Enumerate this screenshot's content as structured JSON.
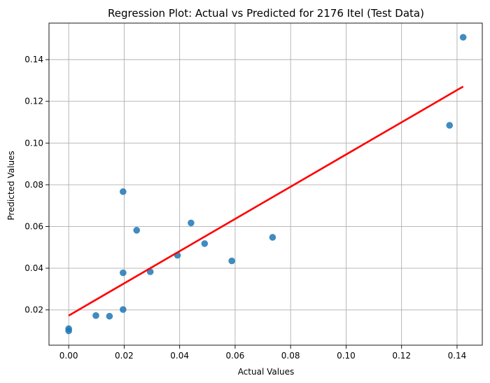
{
  "chart_data": {
    "type": "scatter",
    "title": "Regression Plot: Actual vs Predicted for 2176 Itel (Test Data)",
    "xlabel": "Actual Values",
    "ylabel": "Predicted Values",
    "xlim": [
      -0.0071,
      0.1491
    ],
    "ylim": [
      0.0031,
      0.1575
    ],
    "xticks": [
      0.0,
      0.02,
      0.04,
      0.06,
      0.08,
      0.1,
      0.12,
      0.14
    ],
    "xtick_labels": [
      "0.00",
      "0.02",
      "0.04",
      "0.06",
      "0.08",
      "0.10",
      "0.12",
      "0.14"
    ],
    "yticks": [
      0.02,
      0.04,
      0.06,
      0.08,
      0.1,
      0.12,
      0.14
    ],
    "ytick_labels": [
      "0.02",
      "0.04",
      "0.06",
      "0.08",
      "0.10",
      "0.12",
      "0.14"
    ],
    "grid": true,
    "points": [
      {
        "x": 0.0,
        "y": 0.011
      },
      {
        "x": 0.0,
        "y": 0.01
      },
      {
        "x": 0.0098,
        "y": 0.0173
      },
      {
        "x": 0.0147,
        "y": 0.017
      },
      {
        "x": 0.0196,
        "y": 0.0767
      },
      {
        "x": 0.0196,
        "y": 0.0378
      },
      {
        "x": 0.0196,
        "y": 0.0202
      },
      {
        "x": 0.0245,
        "y": 0.0582
      },
      {
        "x": 0.0294,
        "y": 0.0383
      },
      {
        "x": 0.0392,
        "y": 0.0462
      },
      {
        "x": 0.0441,
        "y": 0.0617
      },
      {
        "x": 0.049,
        "y": 0.0518
      },
      {
        "x": 0.0588,
        "y": 0.0435
      },
      {
        "x": 0.0735,
        "y": 0.0548
      },
      {
        "x": 0.1373,
        "y": 0.1085
      },
      {
        "x": 0.1422,
        "y": 0.1507
      }
    ],
    "regression_line": {
      "x": [
        0.0,
        0.1422
      ],
      "y": [
        0.0173,
        0.1271
      ]
    },
    "colors": {
      "points": "#1f77b4",
      "regression_line": "#ff0000",
      "grid": "#b0b0b0"
    }
  }
}
